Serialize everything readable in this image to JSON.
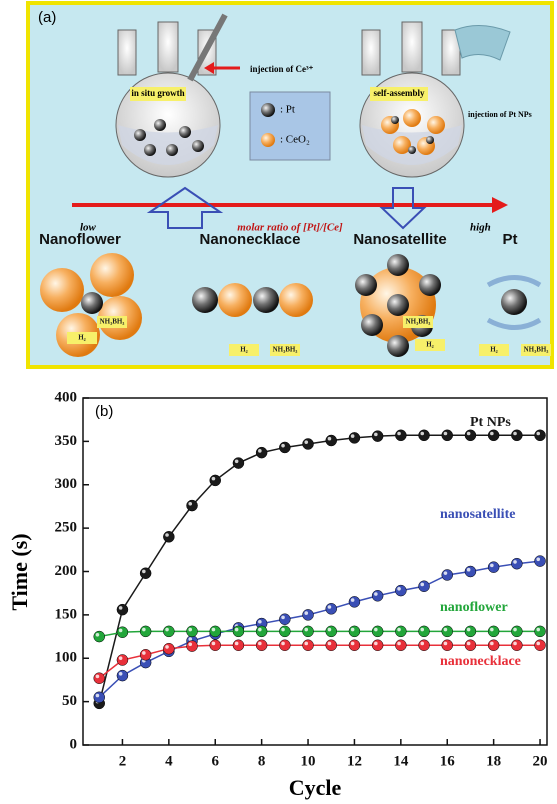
{
  "diagram": {
    "panel_label": "(a)",
    "injection_ce": "injection of Ce³⁺",
    "in_situ": "in situ growth",
    "legend_pt": ": Pt",
    "legend_ceo2": ": CeO₂",
    "self_assembly": "self-assembly",
    "injection_pt": "injection of Pt NPs",
    "low": "low",
    "ratio": "molar ratio of [Pt]/[Ce]",
    "high": "high",
    "structures": [
      "Nanoflower",
      "Nanonecklace",
      "Nanosatellite",
      "Pt"
    ],
    "small_labels": [
      "NH₃BH₃",
      "H₂",
      "H₂",
      "NH₃BH₃",
      "NH₃BH₃",
      "H₂",
      "H₂",
      "NH₃BH₃"
    ]
  },
  "chart_data": {
    "type": "line",
    "panel_label": "(b)",
    "xlabel": "Cycle",
    "ylabel": "Time (s)",
    "x": [
      1,
      2,
      3,
      4,
      5,
      6,
      7,
      8,
      9,
      10,
      11,
      12,
      13,
      14,
      15,
      16,
      17,
      18,
      19,
      20
    ],
    "xlim": [
      0.3,
      20.3
    ],
    "xticks": [
      2,
      4,
      6,
      8,
      10,
      12,
      14,
      16,
      18,
      20
    ],
    "ylim": [
      0,
      400
    ],
    "yticks": [
      0,
      50,
      100,
      150,
      200,
      250,
      300,
      350,
      400
    ],
    "series": [
      {
        "name": "Pt NPs",
        "color": "#1a1a1a",
        "values": [
          48,
          156,
          198,
          240,
          276,
          305,
          325,
          337,
          343,
          347,
          351,
          354,
          356,
          357,
          357,
          357,
          357,
          357,
          357,
          357
        ]
      },
      {
        "name": "nanosatellite",
        "color": "#3a4fb5",
        "values": [
          55,
          80,
          95,
          108,
          120,
          128,
          135,
          140,
          145,
          150,
          157,
          165,
          172,
          178,
          183,
          196,
          200,
          205,
          209,
          212
        ]
      },
      {
        "name": "nanoflower",
        "color": "#22a63a",
        "values": [
          125,
          130,
          131,
          131,
          131,
          131,
          131,
          131,
          131,
          131,
          131,
          131,
          131,
          131,
          131,
          131,
          131,
          131,
          131,
          131
        ]
      },
      {
        "name": "nanonecklace",
        "color": "#e8303a",
        "values": [
          77,
          98,
          104,
          111,
          114,
          115,
          115,
          115,
          115,
          115,
          115,
          115,
          115,
          115,
          115,
          115,
          115,
          115,
          115,
          115
        ]
      }
    ]
  }
}
